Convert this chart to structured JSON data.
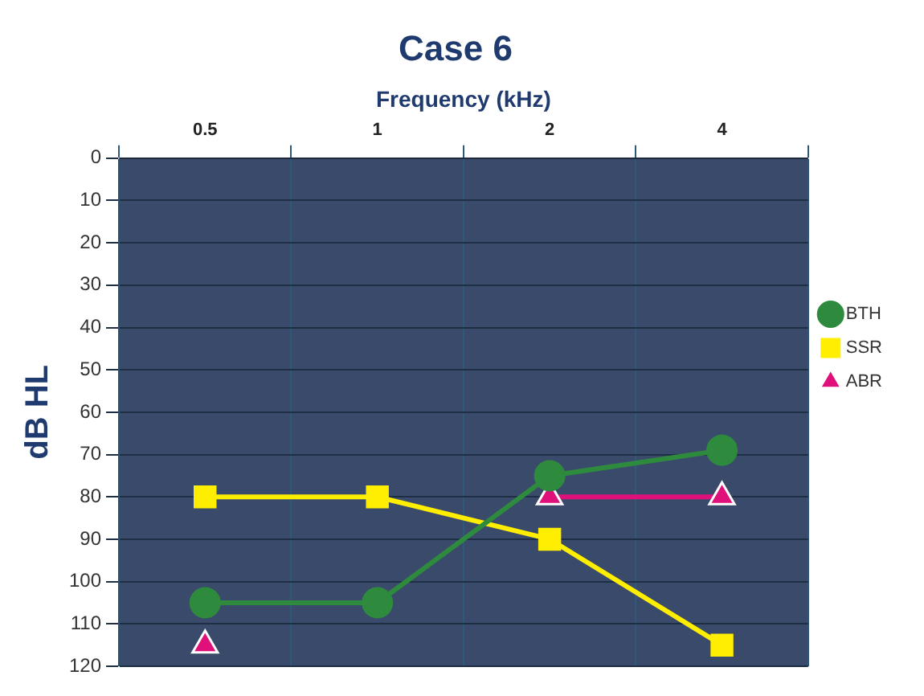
{
  "chart_data": {
    "type": "line",
    "title": "Case 6",
    "xlabel": "Frequency (kHz)",
    "ylabel": "dB HL",
    "categories": [
      "0.5",
      "1",
      "2",
      "4"
    ],
    "series": [
      {
        "name": "BTH",
        "color": "#2e8b3e",
        "marker": "circle",
        "values": [
          105,
          105,
          75,
          69
        ]
      },
      {
        "name": "SSR",
        "color": "#ffee00",
        "marker": "square",
        "values": [
          80,
          80,
          90,
          115
        ]
      },
      {
        "name": "ABR",
        "color": "#e0107a",
        "marker": "triangle",
        "values": [
          115,
          null,
          80,
          80
        ]
      }
    ],
    "ylim": [
      120,
      0
    ],
    "yticks": [
      0,
      10,
      20,
      30,
      40,
      50,
      60,
      70,
      80,
      90,
      100,
      110,
      120
    ],
    "grid": true,
    "legend": "right"
  }
}
